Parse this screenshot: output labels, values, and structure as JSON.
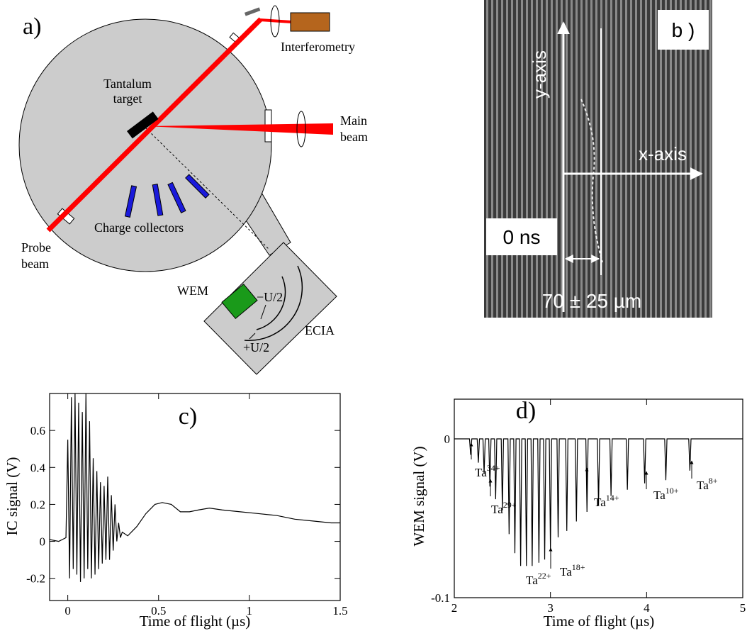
{
  "diagram_a": {
    "label": "a)",
    "interferometry": "Interferometry",
    "target": [
      "Tantalum",
      "target"
    ],
    "main_beam": [
      "Main",
      "beam"
    ],
    "collectors": "Charge collectors",
    "probe_beam": [
      "Probe",
      "beam"
    ],
    "wem": "WEM",
    "minus": "−U/2",
    "plus": "+U/2",
    "ecia": "ECIA"
  },
  "image_b": {
    "label": "b )",
    "y_axis": "y-axis",
    "x_axis": "x-axis",
    "time": "0 ns",
    "width": "70 ± 25 µm"
  },
  "chart_data": [
    {
      "type": "line",
      "title": "c)",
      "xlabel": "Time of flight (µs)",
      "ylabel": "IC signal (V)",
      "color": "#000000",
      "xlim": [
        -0.1,
        1.5
      ],
      "ylim": [
        -0.32,
        0.8
      ],
      "xticks": [
        0,
        0.5,
        1,
        1.5
      ],
      "yticks": [
        -0.2,
        0,
        0.2,
        0.4,
        0.6
      ],
      "x": [
        -0.1,
        -0.05,
        -0.01,
        0,
        0.01,
        0.02,
        0.03,
        0.04,
        0.05,
        0.06,
        0.07,
        0.08,
        0.09,
        0.1,
        0.11,
        0.12,
        0.13,
        0.14,
        0.15,
        0.16,
        0.17,
        0.18,
        0.19,
        0.2,
        0.21,
        0.22,
        0.23,
        0.24,
        0.25,
        0.26,
        0.27,
        0.28,
        0.29,
        0.3,
        0.33,
        0.38,
        0.43,
        0.48,
        0.52,
        0.57,
        0.62,
        0.67,
        0.72,
        0.78,
        0.85,
        0.95,
        1.05,
        1.15,
        1.25,
        1.35,
        1.45,
        1.5
      ],
      "values": [
        0.01,
        0.0,
        0.02,
        0.55,
        -0.2,
        0.78,
        -0.15,
        0.8,
        -0.18,
        0.75,
        -0.22,
        0.7,
        -0.2,
        0.8,
        -0.15,
        0.65,
        -0.2,
        0.45,
        -0.18,
        0.38,
        -0.15,
        0.32,
        -0.12,
        0.3,
        -0.1,
        0.35,
        -0.1,
        0.25,
        -0.05,
        0.2,
        0.0,
        0.1,
        0.02,
        0.05,
        0.03,
        0.08,
        0.15,
        0.2,
        0.21,
        0.2,
        0.16,
        0.16,
        0.17,
        0.18,
        0.17,
        0.16,
        0.15,
        0.14,
        0.12,
        0.11,
        0.1,
        0.1
      ]
    },
    {
      "type": "line",
      "title": "d)",
      "xlabel": "Time of flight (µs)",
      "ylabel": "WEM signal (V)",
      "color": "#000000",
      "xlim": [
        2,
        5
      ],
      "ylim": [
        -0.1,
        0.025
      ],
      "xticks": [
        2,
        3,
        4,
        5
      ],
      "yticks": [
        -0.1,
        0
      ],
      "x": [
        2.0,
        2.158,
        2.17,
        2.182,
        2.238,
        2.25,
        2.262,
        2.298,
        2.31,
        2.322,
        2.358,
        2.37,
        2.382,
        2.418,
        2.43,
        2.442,
        2.488,
        2.5,
        2.512,
        2.558,
        2.57,
        2.582,
        2.618,
        2.63,
        2.642,
        2.678,
        2.69,
        2.702,
        2.738,
        2.75,
        2.762,
        2.798,
        2.81,
        2.822,
        2.868,
        2.88,
        2.892,
        2.928,
        2.94,
        2.952,
        2.988,
        3.0,
        3.012,
        3.068,
        3.08,
        3.092,
        3.158,
        3.17,
        3.182,
        3.258,
        3.27,
        3.282,
        3.368,
        3.38,
        3.392,
        3.488,
        3.5,
        3.512,
        3.618,
        3.63,
        3.642,
        3.788,
        3.8,
        3.812,
        3.968,
        3.98,
        3.992,
        4.188,
        4.2,
        4.212,
        4.438,
        4.45,
        4.462,
        5.0
      ],
      "values": [
        0,
        0,
        -0.01,
        0,
        0,
        -0.015,
        0,
        0,
        -0.022,
        0,
        0,
        -0.03,
        0,
        0,
        -0.038,
        0,
        0,
        -0.045,
        0,
        0,
        -0.06,
        0,
        0,
        -0.072,
        0,
        0,
        -0.08,
        0,
        0,
        -0.08,
        0,
        0,
        -0.08,
        0,
        0,
        -0.078,
        0,
        0,
        -0.076,
        0,
        0,
        -0.07,
        0,
        0,
        -0.062,
        0,
        0,
        -0.058,
        0,
        0,
        -0.052,
        0,
        0,
        -0.046,
        0,
        0,
        -0.042,
        0,
        0,
        -0.036,
        0,
        0,
        -0.032,
        0,
        0,
        -0.028,
        0,
        0,
        -0.026,
        0,
        0,
        -0.02,
        0,
        0
      ],
      "annotations": [
        {
          "text": "Ta",
          "sup": "34+"
        },
        {
          "text": "Ta",
          "sup": "29+"
        },
        {
          "text": "Ta",
          "sup": "22+"
        },
        {
          "text": "Ta",
          "sup": "18+"
        },
        {
          "text": "Ta",
          "sup": "14+"
        },
        {
          "text": "Ta",
          "sup": "10+"
        },
        {
          "text": "Ta",
          "sup": "8+"
        }
      ]
    }
  ]
}
